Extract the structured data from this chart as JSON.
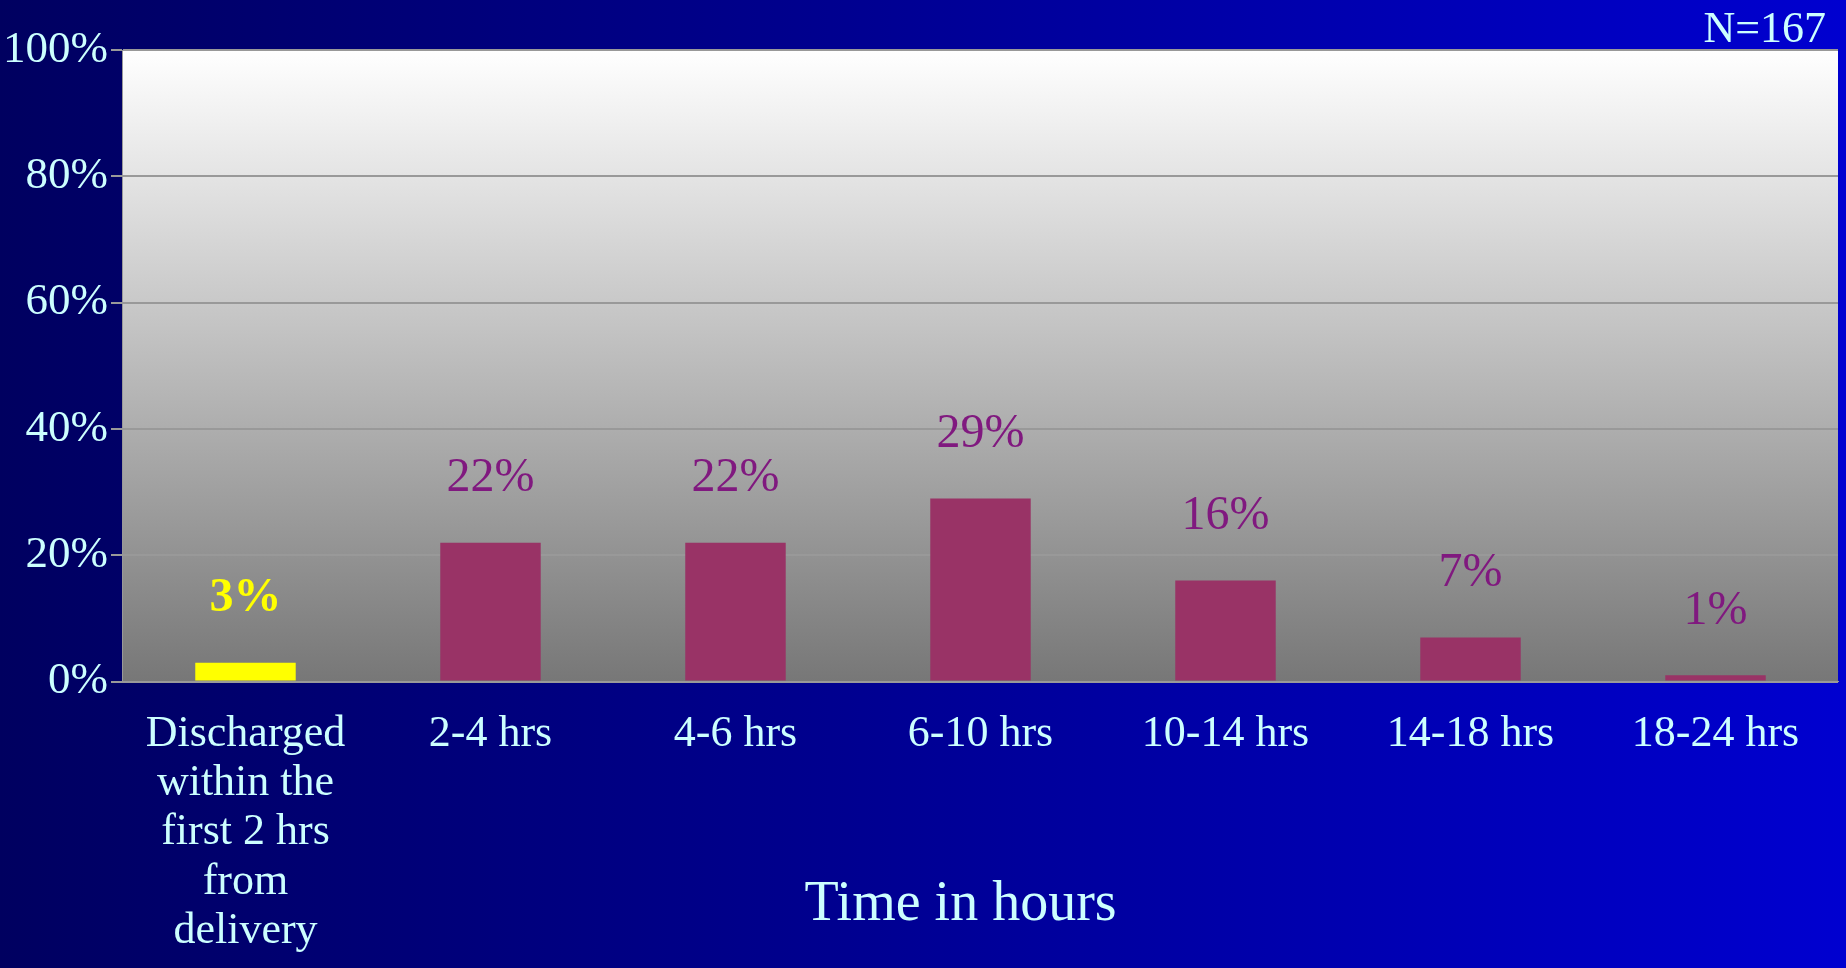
{
  "chart_data": {
    "type": "bar",
    "xlabel": "Time in hours",
    "annotations": [
      "N=167"
    ],
    "categories": [
      "Discharged within the first 2 hrs from delivery",
      "2-4 hrs",
      "4-6 hrs",
      "6-10 hrs",
      "10-14 hrs",
      "14-18 hrs",
      "18-24 hrs"
    ],
    "values": [
      3,
      22,
      22,
      29,
      16,
      7,
      1
    ],
    "colors": [
      "#ffff00",
      "#993366",
      "#993366",
      "#993366",
      "#993366",
      "#993366",
      "#993366"
    ],
    "value_labels": [
      "3%",
      "22%",
      "22%",
      "29%",
      "16%",
      "7%",
      "1%"
    ],
    "ylim": [
      0,
      100
    ],
    "yticks": [
      {
        "value": 0,
        "label": "0%"
      },
      {
        "value": 20,
        "label": "20%"
      },
      {
        "value": 40,
        "label": "40%"
      },
      {
        "value": 60,
        "label": "60%"
      },
      {
        "value": 80,
        "label": "80%"
      },
      {
        "value": 100,
        "label": "100%"
      }
    ],
    "grid": "y",
    "legend": false
  }
}
